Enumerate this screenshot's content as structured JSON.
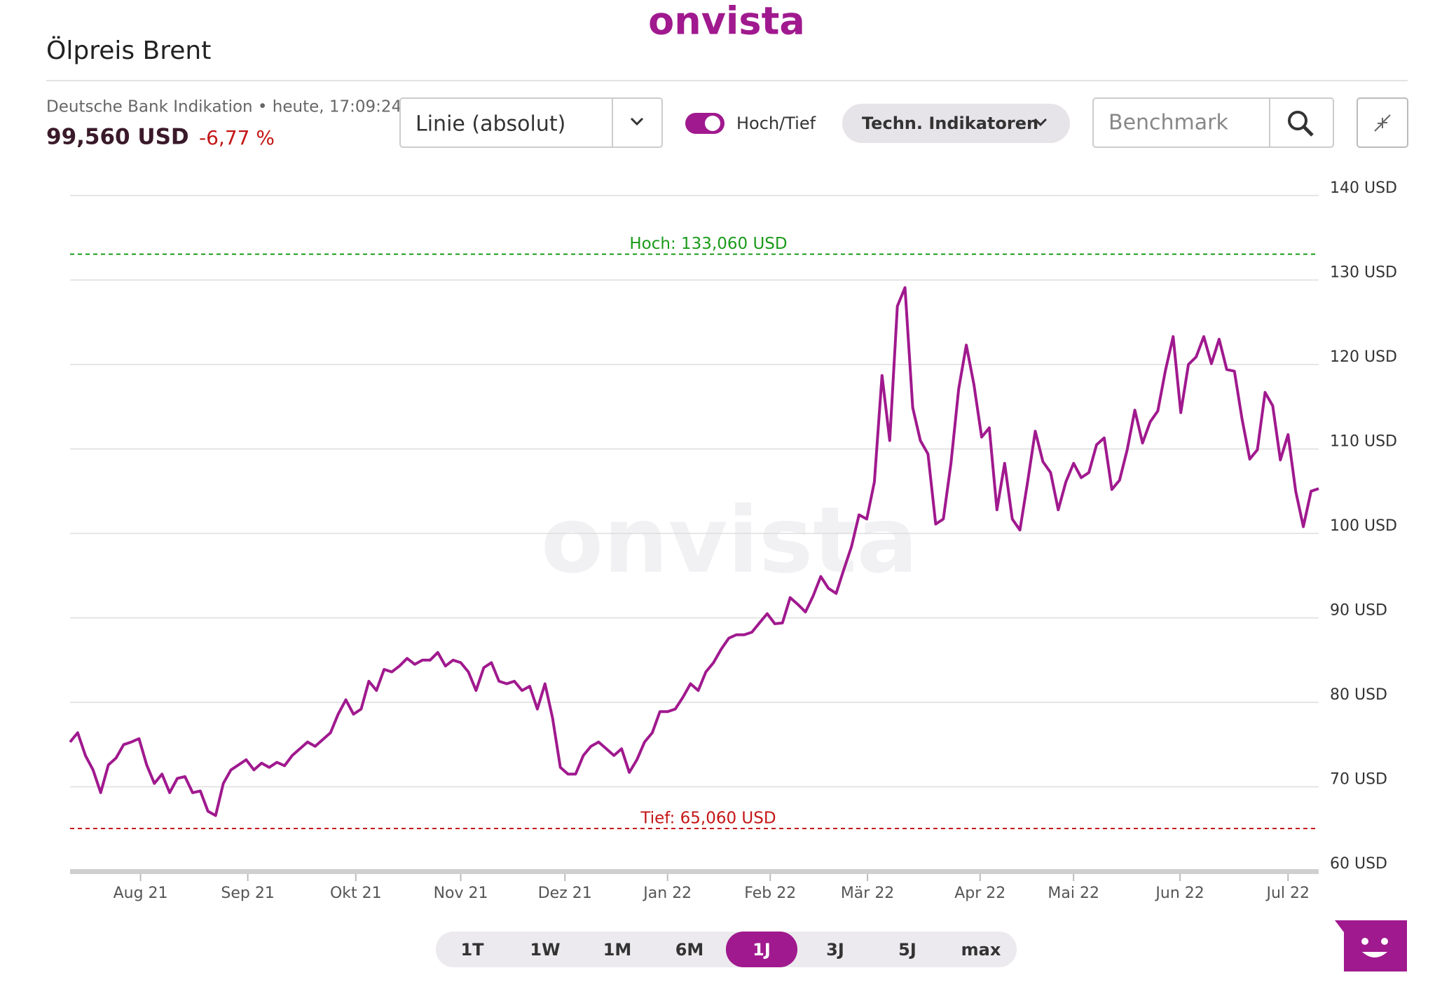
{
  "logo": "onvista",
  "title": "Ölpreis Brent",
  "quote": {
    "source": "Deutsche Bank Indikation • heute, 17:09:24",
    "price": "99,560 USD",
    "change": "-6,77 %"
  },
  "controls": {
    "chart_style": "Linie (absolut)",
    "toggle_label": "Hoch/Tief",
    "indicators": "Techn. Indikatoren",
    "benchmark_placeholder": "Benchmark"
  },
  "periods": [
    "1T",
    "1W",
    "1M",
    "6M",
    "1J",
    "3J",
    "5J",
    "max"
  ],
  "active_period": 4,
  "chart_data": {
    "type": "line",
    "color": "#a0198e",
    "watermark": "onvista",
    "values": [
      75.3,
      76.4,
      73.7,
      72,
      69.3,
      72.6,
      73.4,
      75,
      75.3,
      75.7,
      72.6,
      70.4,
      71.5,
      69.3,
      71,
      71.2,
      69.3,
      69.5,
      67.1,
      66.6,
      70.4,
      72,
      72.6,
      73.2,
      72,
      72.8,
      72.3,
      72.9,
      72.5,
      73.7,
      74.5,
      75.3,
      74.8,
      75.6,
      76.4,
      78.6,
      80.3,
      78.6,
      79.2,
      82.5,
      81.4,
      83.9,
      83.6,
      84.3,
      85.2,
      84.5,
      85,
      85,
      85.9,
      84.3,
      85,
      84.7,
      83.6,
      81.4,
      84.1,
      84.7,
      82.5,
      82.2,
      82.5,
      81.4,
      81.9,
      79.2,
      82.2,
      78.1,
      72.3,
      71.5,
      71.5,
      73.7,
      74.8,
      75.3,
      74.5,
      73.7,
      74.5,
      71.7,
      73.2,
      75.3,
      76.4,
      78.9,
      78.9,
      79.2,
      80.6,
      82.2,
      81.4,
      83.6,
      84.7,
      86.3,
      87.6,
      88,
      88,
      88.3,
      89.4,
      90.5,
      89.3,
      89.4,
      92.4,
      91.6,
      90.7,
      92.6,
      94.9,
      93.5,
      92.9,
      95.7,
      98.4,
      102.2,
      101.7,
      106.1,
      118.7,
      111,
      126.9,
      129.1,
      114.9,
      111,
      109.4,
      101.1,
      101.7,
      108.3,
      117.1,
      122.3,
      117.6,
      111.4,
      112.5,
      102.8,
      108.3,
      101.7,
      100.4,
      106.1,
      112.1,
      108.5,
      107.2,
      102.8,
      106.1,
      108.3,
      106.6,
      107.2,
      110.5,
      111.3,
      105.2,
      106.3,
      109.9,
      114.6,
      110.7,
      113.2,
      114.5,
      119.3,
      123.3,
      114.3,
      120,
      120.9,
      123.3,
      120.1,
      123,
      119.4,
      119.2,
      113.5,
      108.8,
      109.9,
      116.7,
      115.1,
      108.7,
      111.7,
      105,
      100.8,
      105,
      105.3
    ],
    "xlim": [
      0,
      163
    ],
    "xticks": [
      {
        "value": 9.2,
        "label": "Aug 21"
      },
      {
        "value": 23.2,
        "label": "Sep 21"
      },
      {
        "value": 37.3,
        "label": "Okt 21"
      },
      {
        "value": 51,
        "label": "Nov 21"
      },
      {
        "value": 64.6,
        "label": "Dez 21"
      },
      {
        "value": 78,
        "label": "Jan 22"
      },
      {
        "value": 91.4,
        "label": "Feb 22"
      },
      {
        "value": 104.1,
        "label": "Mär 22"
      },
      {
        "value": 118.8,
        "label": "Apr 22"
      },
      {
        "value": 131,
        "label": "Mai 22"
      },
      {
        "value": 144.9,
        "label": "Jun 22"
      },
      {
        "value": 159,
        "label": "Jul 22"
      }
    ],
    "ylim": [
      60,
      140
    ],
    "yticks": [
      {
        "value": 60,
        "label": "60 USD"
      },
      {
        "value": 70,
        "label": "70 USD"
      },
      {
        "value": 80,
        "label": "80 USD"
      },
      {
        "value": 90,
        "label": "90 USD"
      },
      {
        "value": 100,
        "label": "100 USD"
      },
      {
        "value": 110,
        "label": "110 USD"
      },
      {
        "value": 120,
        "label": "120 USD"
      },
      {
        "value": 130,
        "label": "130 USD"
      },
      {
        "value": 140,
        "label": "140 USD"
      }
    ],
    "grid": true,
    "high": {
      "value": 133.06,
      "label": "Hoch: 133,060 USD",
      "color": "#1a9a1a"
    },
    "low": {
      "value": 65.06,
      "label": "Tief: 65,060 USD",
      "color": "#c41616"
    }
  }
}
